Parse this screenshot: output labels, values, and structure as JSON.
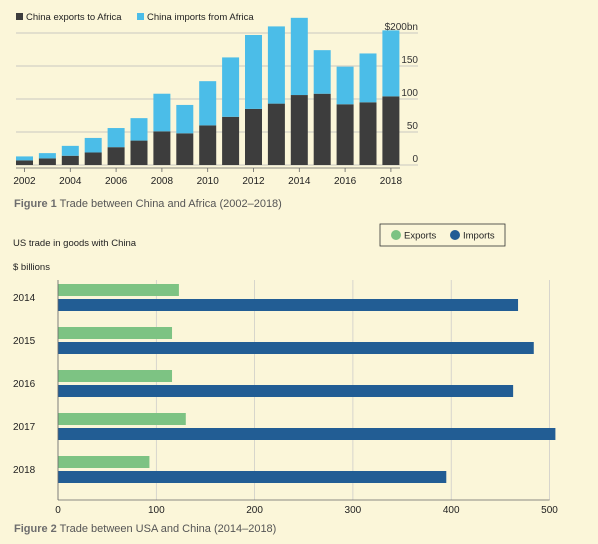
{
  "figure1": {
    "caption_label": "Figure 1",
    "caption_text": " Trade between China and Africa (2002–2018)"
  },
  "figure2": {
    "caption_label": "Figure 2",
    "caption_text": " Trade between USA and China (2014–2018)"
  },
  "colors": {
    "background": "#fbf6d9",
    "china_exports": "#3d3d3d",
    "china_imports": "#4bbde8",
    "us_exports": "#7dc383",
    "us_imports": "#225d94"
  },
  "chart_data": [
    {
      "type": "bar",
      "stacked": true,
      "orientation": "vertical",
      "title": "",
      "categories": [
        2002,
        2003,
        2004,
        2005,
        2006,
        2007,
        2008,
        2009,
        2010,
        2011,
        2012,
        2013,
        2014,
        2015,
        2016,
        2017,
        2018
      ],
      "x_tick_labels": [
        "2002",
        "2004",
        "2006",
        "2008",
        "2010",
        "2012",
        "2014",
        "2016",
        "2018"
      ],
      "series": [
        {
          "name": "China exports to Africa",
          "color": "#3d3d3d",
          "values": [
            7,
            10,
            14,
            19,
            27,
            37,
            51,
            48,
            60,
            73,
            85,
            93,
            106,
            108,
            92,
            95,
            104
          ]
        },
        {
          "name": "China imports from Africa",
          "color": "#4bbde8",
          "values": [
            6,
            8,
            15,
            22,
            29,
            34,
            57,
            43,
            67,
            90,
            112,
            117,
            117,
            66,
            57,
            74,
            100
          ]
        }
      ],
      "ylim": [
        0,
        210
      ],
      "y_ticks": [
        0,
        50,
        100,
        150,
        200
      ],
      "y_tick_labels": [
        "0",
        "50",
        "100",
        "150",
        "$200bn"
      ],
      "legend_position": "top-left",
      "grid": "horizontal"
    },
    {
      "type": "bar",
      "orientation": "horizontal",
      "title": "US trade in goods with China",
      "unit_label": "$ billions",
      "categories": [
        "2014",
        "2015",
        "2016",
        "2017",
        "2018"
      ],
      "series": [
        {
          "name": "Exports",
          "color": "#7dc383",
          "values": [
            123,
            116,
            116,
            130,
            93
          ]
        },
        {
          "name": "Imports",
          "color": "#225d94",
          "values": [
            468,
            484,
            463,
            506,
            395
          ]
        }
      ],
      "xlim": [
        0,
        500
      ],
      "x_ticks": [
        0,
        100,
        200,
        300,
        400,
        500
      ],
      "x_tick_labels": [
        "0",
        "100",
        "200",
        "300",
        "400",
        "500"
      ],
      "legend_position": "top-right",
      "grid": "vertical"
    }
  ]
}
